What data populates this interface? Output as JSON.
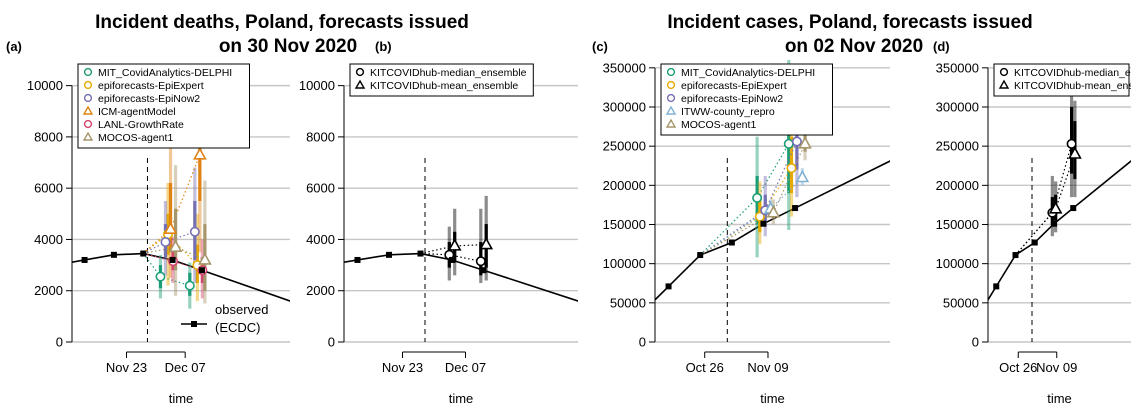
{
  "titles": [
    {
      "line1": "Incident deaths, Poland, forecasts issued",
      "line2": "on 30 Nov 2020"
    },
    {
      "line1": "Incident cases, Poland, forecasts issued",
      "line2": "on 02 Nov 2020"
    }
  ],
  "panel_labels": [
    "(a)",
    "(b)",
    "(c)",
    "(d)"
  ],
  "x_label": "time",
  "colors": {
    "MIT_CovidAnalytics-DELPHI": "#1b9e77",
    "epiforecasts-EpiExpert": "#e6ab02",
    "epiforecasts-EpiNow2": "#7570b3",
    "ICM-agentModel": "#e08214",
    "LANL-GrowthRate": "#d6456d",
    "MOCOS-agent1": "#a6966b",
    "ITWW-county_repro": "#80b1d3",
    "KITCOVIDhub-median_ensemble": "#000000",
    "KITCOVIDhub-mean_ensemble": "#000000"
  },
  "chart_data": [
    {
      "id": "a",
      "type": "line",
      "title": "Incident deaths, Poland, forecasts issued on 30 Nov 2020",
      "xlabel": "time",
      "ylabel": "",
      "xlim": [
        0,
        52
      ],
      "ylim": [
        0,
        11000
      ],
      "yticks": [
        0,
        2000,
        4000,
        6000,
        8000,
        10000
      ],
      "xticks": [
        {
          "x": 13,
          "label": "Nov 23"
        },
        {
          "x": 27,
          "label": "Dec 07"
        }
      ],
      "forecast_date_x": 18,
      "observed_label": "observed\n(ECDC)",
      "observed": [
        {
          "x": 3,
          "y": 3200
        },
        {
          "x": 10,
          "y": 3400
        },
        {
          "x": 17,
          "y": 3450
        },
        {
          "x": 24,
          "y": 3200
        },
        {
          "x": 31,
          "y": 2800
        }
      ],
      "legend_position": "top-left",
      "legend": [
        {
          "name": "MIT_CovidAnalytics-DELPHI",
          "marker": "circle"
        },
        {
          "name": "epiforecasts-EpiExpert",
          "marker": "circle"
        },
        {
          "name": "epiforecasts-EpiNow2",
          "marker": "circle"
        },
        {
          "name": "ICM-agentModel",
          "marker": "triangle"
        },
        {
          "name": "LANL-GrowthRate",
          "marker": "circle"
        },
        {
          "name": "MOCOS-agent1",
          "marker": "triangle"
        }
      ],
      "forecasts": [
        {
          "model": "MIT_CovidAnalytics-DELPHI",
          "marker": "circle",
          "points": [
            {
              "x": 21.1,
              "med": 2550,
              "l50": 2100,
              "u50": 3000,
              "l95": 1700,
              "u95": 3400
            },
            {
              "x": 28.1,
              "med": 2200,
              "l50": 1800,
              "u50": 2700,
              "l95": 1300,
              "u95": 3100
            }
          ]
        },
        {
          "model": "epiforecasts-EpiExpert",
          "marker": "circle",
          "points": [
            {
              "x": 22.9,
              "med": 4200,
              "l50": 3400,
              "u50": 5000,
              "l95": 2200,
              "u95": 6200
            },
            {
              "x": 29.9,
              "med": 3000,
              "l50": 2300,
              "u50": 3800,
              "l95": 1600,
              "u95": 5000
            }
          ]
        },
        {
          "model": "epiforecasts-EpiNow2",
          "marker": "circle",
          "points": [
            {
              "x": 22.3,
              "med": 3900,
              "l50": 3300,
              "u50": 4600,
              "l95": 2600,
              "u95": 5500
            },
            {
              "x": 29.3,
              "med": 4300,
              "l50": 3200,
              "u50": 5500,
              "l95": 2300,
              "u95": 6800
            }
          ]
        },
        {
          "model": "ICM-agentModel",
          "marker": "triangle",
          "points": [
            {
              "x": 23.5,
              "med": 4400,
              "l50": 3500,
              "u50": 6200,
              "l95": 2500,
              "u95": 8300
            },
            {
              "x": 30.5,
              "med": 7300,
              "l50": 5500,
              "u50": 8500,
              "l95": 3500,
              "u95": 10200
            }
          ]
        },
        {
          "model": "LANL-GrowthRate",
          "marker": "circle",
          "points": [
            {
              "x": 24.1,
              "med": 3150,
              "l50": 2800,
              "u50": 3600,
              "l95": 2300,
              "u95": 4100
            },
            {
              "x": 31.1,
              "med": 2800,
              "l50": 2300,
              "u50": 3300,
              "l95": 1700,
              "u95": 4000
            }
          ]
        },
        {
          "model": "MOCOS-agent1",
          "marker": "triangle",
          "points": [
            {
              "x": 24.7,
              "med": 3700,
              "l50": 2800,
              "u50": 5200,
              "l95": 1800,
              "u95": 6900
            },
            {
              "x": 31.7,
              "med": 3200,
              "l50": 2000,
              "u50": 4600,
              "l95": 1500,
              "u95": 6300
            }
          ]
        }
      ]
    },
    {
      "id": "b",
      "type": "line",
      "title": "",
      "xlabel": "time",
      "ylabel": "",
      "xlim": [
        0,
        52
      ],
      "ylim": [
        0,
        11000
      ],
      "yticks": [
        0,
        2000,
        4000,
        6000,
        8000,
        10000
      ],
      "xticks": [
        {
          "x": 13,
          "label": "Nov 23"
        },
        {
          "x": 27,
          "label": "Dec 07"
        }
      ],
      "forecast_date_x": 18,
      "observed": [
        {
          "x": 3,
          "y": 3200
        },
        {
          "x": 10,
          "y": 3400
        },
        {
          "x": 17,
          "y": 3450
        },
        {
          "x": 24,
          "y": 3200
        },
        {
          "x": 31,
          "y": 2800
        }
      ],
      "legend_position": "top-left",
      "legend": [
        {
          "name": "KITCOVIDhub-median_ensemble",
          "marker": "circle"
        },
        {
          "name": "KITCOVIDhub-mean_ensemble",
          "marker": "triangle"
        }
      ],
      "forecasts": [
        {
          "model": "KITCOVIDhub-median_ensemble",
          "marker": "circle",
          "points": [
            {
              "x": 23.4,
              "med": 3400,
              "l50": 2900,
              "u50": 3900,
              "l95": 2400,
              "u95": 4500
            },
            {
              "x": 30.4,
              "med": 3150,
              "l50": 2600,
              "u50": 3900,
              "l95": 2300,
              "u95": 5200
            }
          ]
        },
        {
          "model": "KITCOVIDhub-mean_ensemble",
          "marker": "triangle",
          "points": [
            {
              "x": 24.6,
              "med": 3750,
              "l50": 3100,
              "u50": 4300,
              "l95": 2600,
              "u95": 5200
            },
            {
              "x": 31.6,
              "med": 3800,
              "l50": 2900,
              "u50": 4600,
              "l95": 2400,
              "u95": 5700
            }
          ]
        }
      ]
    },
    {
      "id": "c",
      "type": "line",
      "title": "Incident cases, Poland, forecasts issued on 02 Nov 2020",
      "xlabel": "time",
      "ylabel": "",
      "xlim": [
        0,
        52
      ],
      "ylim": [
        0,
        360000
      ],
      "yticks": [
        0,
        50000,
        100000,
        150000,
        200000,
        250000,
        300000,
        350000
      ],
      "xticks": [
        {
          "x": 11,
          "label": "Oct 26"
        },
        {
          "x": 25,
          "label": "Nov 09"
        }
      ],
      "forecast_date_x": 16,
      "observed": [
        {
          "x": 3,
          "y": 71000
        },
        {
          "x": 10,
          "y": 111000
        },
        {
          "x": 17,
          "y": 127000
        },
        {
          "x": 24,
          "y": 151000
        },
        {
          "x": 31,
          "y": 171000
        }
      ],
      "legend_position": "top-left",
      "legend": [
        {
          "name": "MIT_CovidAnalytics-DELPHI",
          "marker": "circle"
        },
        {
          "name": "epiforecasts-EpiExpert",
          "marker": "circle"
        },
        {
          "name": "epiforecasts-EpiNow2",
          "marker": "circle"
        },
        {
          "name": "ITWW-county_repro",
          "marker": "triangle"
        },
        {
          "name": "MOCOS-agent1",
          "marker": "triangle"
        }
      ],
      "forecasts": [
        {
          "model": "MIT_CovidAnalytics-DELPHI",
          "marker": "circle",
          "points": [
            {
              "x": 22.6,
              "med": 184000,
              "l50": 150000,
              "u50": 212000,
              "l95": 108000,
              "u95": 262000
            },
            {
              "x": 29.6,
              "med": 253000,
              "l50": 190000,
              "u50": 315000,
              "l95": 143000,
              "u95": 360000
            }
          ]
        },
        {
          "model": "epiforecasts-EpiExpert",
          "marker": "circle",
          "points": [
            {
              "x": 23.2,
              "med": 160000,
              "l50": 140000,
              "u50": 182000,
              "l95": 125000,
              "u95": 205000
            },
            {
              "x": 30.2,
              "med": 222000,
              "l50": 190000,
              "u50": 262000,
              "l95": 160000,
              "u95": 305000
            }
          ]
        },
        {
          "model": "epiforecasts-EpiNow2",
          "marker": "circle",
          "points": [
            {
              "x": 24.4,
              "med": 168000,
              "l50": 152000,
              "u50": 188000,
              "l95": 135000,
              "u95": 212000
            },
            {
              "x": 31.4,
              "med": 256000,
              "l50": 220000,
              "u50": 300000,
              "l95": 185000,
              "u95": 355000
            }
          ]
        },
        {
          "model": "ITWW-county_repro",
          "marker": "triangle",
          "points": [
            {
              "x": 25.6,
              "med": 170000,
              "l50": 165000,
              "u50": 176000,
              "l95": 160000,
              "u95": 182000
            },
            {
              "x": 32.6,
              "med": 210000,
              "l50": 205000,
              "u50": 216000,
              "l95": 200000,
              "u95": 222000
            }
          ]
        },
        {
          "model": "MOCOS-agent1",
          "marker": "triangle",
          "points": [
            {
              "x": 26.2,
              "med": 165000,
              "l50": 158000,
              "u50": 173000,
              "l95": 150000,
              "u95": 182000
            },
            {
              "x": 33.2,
              "med": 253000,
              "l50": 243000,
              "u50": 265000,
              "l95": 232000,
              "u95": 280000
            }
          ]
        }
      ]
    },
    {
      "id": "d",
      "type": "line",
      "title": "",
      "xlabel": "time",
      "ylabel": "",
      "xlim": [
        0,
        52
      ],
      "ylim": [
        0,
        360000
      ],
      "yticks": [
        0,
        50000,
        100000,
        150000,
        200000,
        250000,
        300000,
        350000
      ],
      "xticks": [
        {
          "x": 11,
          "label": "Oct 26"
        },
        {
          "x": 25,
          "label": "Nov 09"
        }
      ],
      "forecast_date_x": 16,
      "observed": [
        {
          "x": 3,
          "y": 71000
        },
        {
          "x": 10,
          "y": 111000
        },
        {
          "x": 17,
          "y": 127000
        },
        {
          "x": 24,
          "y": 151000
        },
        {
          "x": 31,
          "y": 171000
        }
      ],
      "legend_position": "top-left",
      "legend": [
        {
          "name": "KITCOVIDhub-median_ensemble",
          "marker": "circle"
        },
        {
          "name": "KITCOVIDhub-mean_ensemble",
          "marker": "triangle"
        }
      ],
      "forecasts": [
        {
          "model": "KITCOVIDhub-median_ensemble",
          "marker": "circle",
          "points": [
            {
              "x": 23.4,
              "med": 165000,
              "l50": 150000,
              "u50": 185000,
              "l95": 135000,
              "u95": 212000
            },
            {
              "x": 30.4,
              "med": 253000,
              "l50": 215000,
              "u50": 300000,
              "l95": 185000,
              "u95": 335000
            }
          ]
        },
        {
          "model": "KITCOVIDhub-mean_ensemble",
          "marker": "triangle",
          "points": [
            {
              "x": 24.6,
              "med": 170000,
              "l50": 155000,
              "u50": 188000,
              "l95": 140000,
              "u95": 205000
            },
            {
              "x": 31.6,
              "med": 240000,
              "l50": 208000,
              "u50": 282000,
              "l95": 185000,
              "u95": 308000
            }
          ]
        }
      ]
    }
  ]
}
